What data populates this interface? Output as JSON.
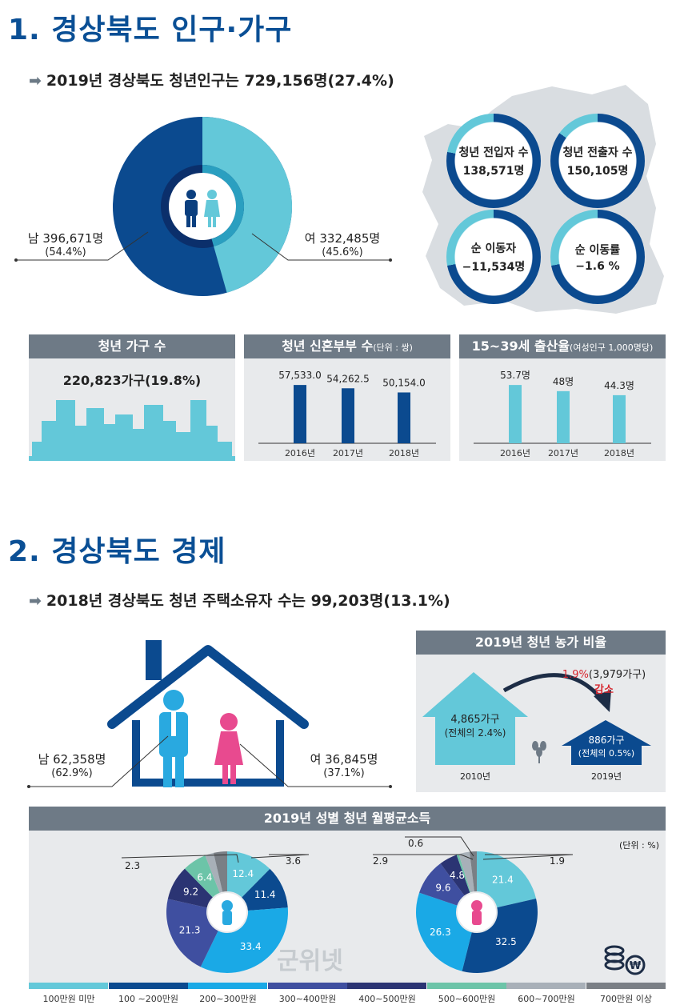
{
  "section1": {
    "title": "1. 경상북도 인구·가구",
    "subtitle": "2019년 경상북도 청년인구는 729,156명(27.4%)"
  },
  "gender_donut": {
    "male": {
      "label": "남 396,671명",
      "pct": "(54.4%)",
      "value": 396671,
      "share": 54.4,
      "color": "#0b4a8f"
    },
    "female": {
      "label": "여 332,485명",
      "pct": "(45.6%)",
      "value": 332485,
      "share": 45.6,
      "color": "#63c8d9"
    }
  },
  "migration": [
    {
      "line1": "청년 전입자 수",
      "line2": "138,571명",
      "ring_share": 0.78
    },
    {
      "line1": "청년 전출자 수",
      "line2": "150,105명",
      "ring_share": 0.85
    },
    {
      "line1": "순 이동자",
      "line2": "−11,534명",
      "ring_share": 0.72
    },
    {
      "line1": "순 이동률",
      "line2": "−1.6 %",
      "ring_share": 0.72
    }
  ],
  "household_panel": {
    "title": "청년 가구 수",
    "value": "220,823가구(19.8%)"
  },
  "chart_data": [
    {
      "type": "bar",
      "title": "청년 신혼부부 수",
      "unit_note": "(단위 : 쌍)",
      "categories": [
        "2016년",
        "2017년",
        "2018년"
      ],
      "values": [
        57533.0,
        54262.5,
        50154.0
      ],
      "value_labels": [
        "57,533.0",
        "54,262.5",
        "50,154.0"
      ],
      "color": "#0b4a8f"
    },
    {
      "type": "bar",
      "title": "15∼39세 출산율",
      "unit_note": "(여성인구 1,000명당)",
      "categories": [
        "2016년",
        "2017년",
        "2018년"
      ],
      "values": [
        53.7,
        48,
        44.3
      ],
      "value_labels": [
        "53.7명",
        "48명",
        "44.3명"
      ],
      "color": "#63c8d9"
    },
    {
      "type": "pie",
      "title": "2019년 성별 청년 월평균소득",
      "unit_note": "(단위 : %)",
      "series": [
        {
          "values": [
            12.4,
            11.4,
            33.4,
            21.3,
            9.2,
            6.4,
            2.3,
            3.6
          ],
          "labels": [
            "12.4",
            "11.4",
            "33.4",
            "21.3",
            "9.2",
            "6.4",
            "2.3",
            "3.6"
          ]
        },
        {
          "values": [
            21.4,
            32.5,
            26.3,
            9.6,
            4.8,
            0.6,
            2.9,
            1.9
          ],
          "labels": [
            "21.4",
            "32.5",
            "26.3",
            "9.6",
            "4.8",
            "0.6",
            "2.9",
            "1.9"
          ]
        }
      ],
      "categories": [
        "100만원 미만",
        "100 ∼200만원",
        "200∼300만원",
        "300∼400만원",
        "400∼500만원",
        "500∼600만원",
        "600∼700만원",
        "700만원 이상"
      ],
      "colors": [
        "#63c8d9",
        "#0b4a8f",
        "#1aa9e6",
        "#3f4fa0",
        "#2b3473",
        "#6cc4a8",
        "#a8b0b8",
        "#7a7f85"
      ]
    }
  ],
  "section2": {
    "title": "2. 경상북도 경제",
    "subtitle": "2018년 경상북도 청년 주택소유자 수는 99,203명(13.1%)"
  },
  "house": {
    "male": {
      "label": "남 62,358명",
      "pct": "(62.9%)"
    },
    "female": {
      "label": "여 36,845명",
      "pct": "(37.1%)"
    }
  },
  "farm_panel": {
    "title": "2019년 청년 농가 비율",
    "big_house_line1": "4,865가구",
    "big_house_line2": "(전체의 2.4%)",
    "big_year": "2010년",
    "small_house_line1": "886가구",
    "small_house_line2": "(전체의 0.5%)",
    "small_year": "2019년",
    "change_pct": "1.9%",
    "change_count": "(3,979가구)",
    "change_word": "감소"
  },
  "watermark": "군위넷"
}
